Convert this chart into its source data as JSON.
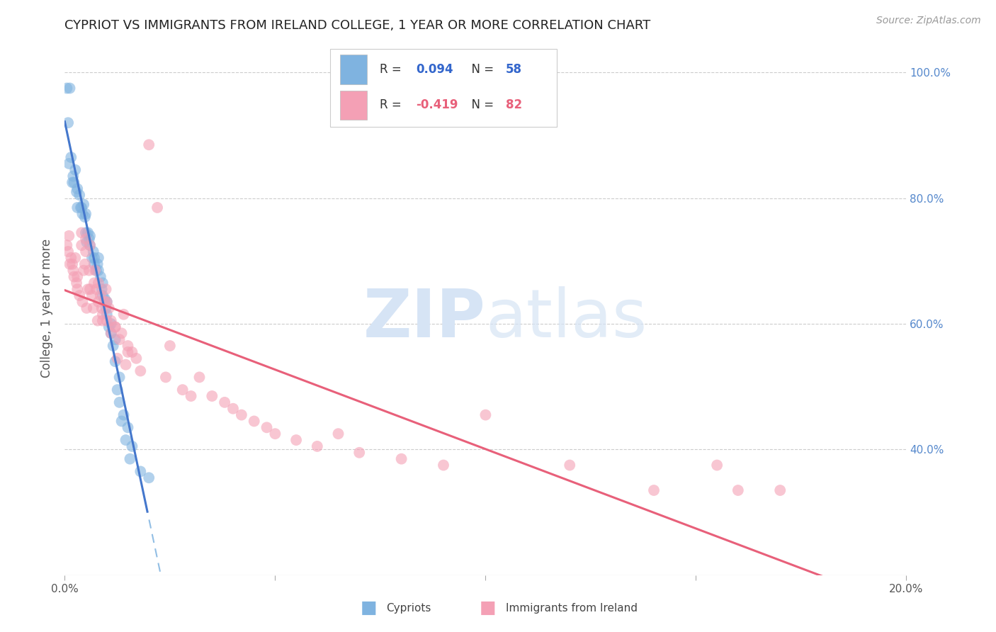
{
  "title": "CYPRIOT VS IMMIGRANTS FROM IRELAND COLLEGE, 1 YEAR OR MORE CORRELATION CHART",
  "source": "Source: ZipAtlas.com",
  "ylabel": "College, 1 year or more",
  "xlim": [
    0.0,
    0.2
  ],
  "ylim": [
    0.2,
    1.05
  ],
  "blue_color": "#7FB3E0",
  "pink_color": "#F4A0B5",
  "blue_line_color": "#4477CC",
  "pink_line_color": "#E8607A",
  "blue_dashed_color": "#7FB3E0",
  "watermark_color": "#D6E4F5",
  "blue_r": "0.094",
  "blue_n": "58",
  "pink_r": "-0.419",
  "pink_n": "82",
  "blue_points_x": [
    0.0005,
    0.0012,
    0.0008,
    0.0015,
    0.001,
    0.002,
    0.0018,
    0.0025,
    0.0022,
    0.003,
    0.0028,
    0.0035,
    0.003,
    0.004,
    0.0038,
    0.0042,
    0.0045,
    0.005,
    0.0048,
    0.005,
    0.0055,
    0.006,
    0.0052,
    0.0058,
    0.006,
    0.0065,
    0.007,
    0.0068,
    0.007,
    0.0075,
    0.008,
    0.0078,
    0.008,
    0.0085,
    0.009,
    0.0088,
    0.009,
    0.0095,
    0.01,
    0.0098,
    0.01,
    0.011,
    0.0105,
    0.011,
    0.012,
    0.0115,
    0.012,
    0.013,
    0.0125,
    0.013,
    0.014,
    0.0135,
    0.015,
    0.0145,
    0.016,
    0.0155,
    0.018,
    0.02
  ],
  "blue_points_y": [
    0.975,
    0.975,
    0.92,
    0.865,
    0.855,
    0.835,
    0.825,
    0.845,
    0.825,
    0.815,
    0.81,
    0.805,
    0.785,
    0.785,
    0.785,
    0.775,
    0.79,
    0.775,
    0.77,
    0.745,
    0.745,
    0.74,
    0.73,
    0.735,
    0.725,
    0.705,
    0.705,
    0.715,
    0.695,
    0.685,
    0.705,
    0.695,
    0.685,
    0.675,
    0.665,
    0.655,
    0.645,
    0.64,
    0.635,
    0.625,
    0.615,
    0.6,
    0.595,
    0.585,
    0.575,
    0.565,
    0.54,
    0.515,
    0.495,
    0.475,
    0.455,
    0.445,
    0.435,
    0.415,
    0.405,
    0.385,
    0.365,
    0.355
  ],
  "pink_points_x": [
    0.0005,
    0.001,
    0.0008,
    0.0012,
    0.0015,
    0.002,
    0.0018,
    0.0022,
    0.0025,
    0.003,
    0.0028,
    0.003,
    0.004,
    0.0035,
    0.004,
    0.0045,
    0.005,
    0.0048,
    0.0042,
    0.005,
    0.0055,
    0.006,
    0.0052,
    0.0058,
    0.006,
    0.0065,
    0.007,
    0.0068,
    0.0072,
    0.0075,
    0.008,
    0.0078,
    0.008,
    0.0085,
    0.009,
    0.0088,
    0.009,
    0.0095,
    0.01,
    0.0098,
    0.01,
    0.011,
    0.0105,
    0.012,
    0.011,
    0.013,
    0.0125,
    0.012,
    0.014,
    0.0135,
    0.015,
    0.0145,
    0.016,
    0.015,
    0.018,
    0.017,
    0.02,
    0.022,
    0.025,
    0.024,
    0.028,
    0.032,
    0.03,
    0.035,
    0.038,
    0.04,
    0.042,
    0.045,
    0.048,
    0.05,
    0.055,
    0.06,
    0.065,
    0.07,
    0.08,
    0.09,
    0.1,
    0.12,
    0.14,
    0.155,
    0.16,
    0.17
  ],
  "pink_points_y": [
    0.725,
    0.74,
    0.715,
    0.695,
    0.705,
    0.685,
    0.695,
    0.675,
    0.705,
    0.675,
    0.665,
    0.655,
    0.745,
    0.645,
    0.725,
    0.685,
    0.735,
    0.695,
    0.635,
    0.715,
    0.655,
    0.725,
    0.625,
    0.685,
    0.655,
    0.645,
    0.665,
    0.625,
    0.685,
    0.655,
    0.635,
    0.605,
    0.665,
    0.645,
    0.615,
    0.625,
    0.605,
    0.635,
    0.605,
    0.655,
    0.635,
    0.605,
    0.625,
    0.595,
    0.585,
    0.575,
    0.545,
    0.595,
    0.615,
    0.585,
    0.555,
    0.535,
    0.555,
    0.565,
    0.525,
    0.545,
    0.885,
    0.785,
    0.565,
    0.515,
    0.495,
    0.515,
    0.485,
    0.485,
    0.475,
    0.465,
    0.455,
    0.445,
    0.435,
    0.425,
    0.415,
    0.405,
    0.425,
    0.395,
    0.385,
    0.375,
    0.455,
    0.375,
    0.335,
    0.375,
    0.335,
    0.335
  ]
}
